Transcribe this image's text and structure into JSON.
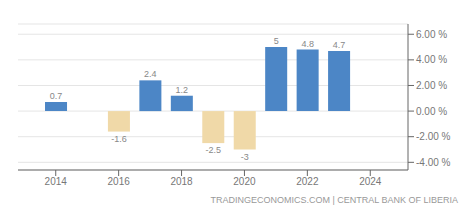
{
  "chart_data": {
    "type": "bar",
    "x": [
      2014,
      2015,
      2016,
      2017,
      2018,
      2019,
      2020,
      2021,
      2022,
      2023
    ],
    "values": [
      0.7,
      0,
      -1.6,
      2.4,
      1.2,
      -2.5,
      -3,
      5,
      4.8,
      4.7
    ],
    "colors": [
      "#4c86c6",
      "#f0d9a8",
      "#f0d9a8",
      "#4c86c6",
      "#4c86c6",
      "#f0d9a8",
      "#f0d9a8",
      "#4c86c6",
      "#4c86c6",
      "#4c86c6"
    ],
    "data_labels": true,
    "xlim": [
      2012.8,
      2025.2
    ],
    "xticks": [
      2014,
      2016,
      2018,
      2020,
      2022,
      2024
    ],
    "ylim": [
      -4.6,
      6.8
    ],
    "yticks": [
      {
        "value": -4,
        "label": "-4.00 %"
      },
      {
        "value": -2,
        "label": "-2.00 %"
      },
      {
        "value": 0,
        "label": "0.00 %"
      },
      {
        "value": 2,
        "label": "2.00 %"
      },
      {
        "value": 4,
        "label": "4.00 %"
      },
      {
        "value": 6,
        "label": "6.00 %"
      }
    ],
    "grid": true,
    "annotations": [
      "TRADINGECONOMICS.COM | CENTRAL BANK OF LIBERIA"
    ]
  }
}
